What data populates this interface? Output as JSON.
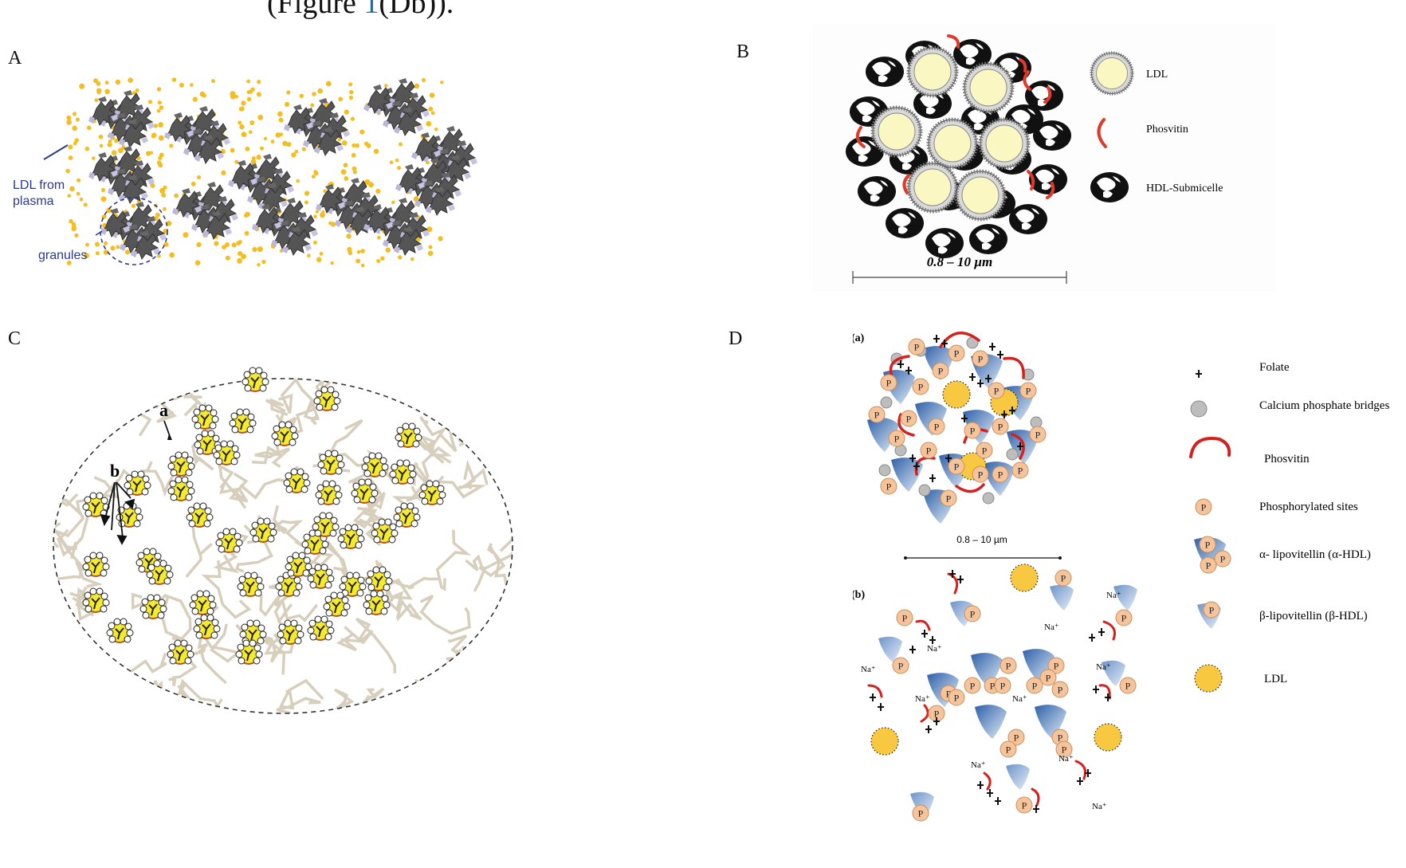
{
  "caption": {
    "prefix": "(Figure ",
    "link": "1",
    "suffix": "(Db))."
  },
  "panels": {
    "A": {
      "letter": "A",
      "label_ldl_line1": "LDL from",
      "label_ldl_line2": "plasma",
      "label_granules": "granules"
    },
    "B": {
      "letter": "B",
      "scale": "0.8 – 10 µm",
      "legend": [
        {
          "icon": "ldl-icon",
          "label": "LDL"
        },
        {
          "icon": "phosvitin-icon",
          "label": "Phosvitin"
        },
        {
          "icon": "hdl-submicelle-icon",
          "label": "HDL-Submicelle"
        }
      ]
    },
    "C": {
      "letter": "C",
      "label_a": "a",
      "label_b": "b"
    },
    "D": {
      "letter": "D",
      "sub_a": "(a)",
      "sub_b": "(b)",
      "scale": "0.8 – 10 µm",
      "p_letter": "P",
      "ion": "Na⁺",
      "legend": [
        {
          "icon": "folate-icon",
          "label": "Folate"
        },
        {
          "icon": "calcium-phosphate-icon",
          "label": "Calcium phosphate bridges"
        },
        {
          "icon": "phosvitin-icon",
          "label": "Phosvitin"
        },
        {
          "icon": "phosphorylated-site-icon",
          "label": "Phosphorylated sites"
        },
        {
          "icon": "alpha-lipovitellin-icon",
          "label": "α- lipovitellin (α-HDL)"
        },
        {
          "icon": "beta-lipovitellin-icon",
          "label": "β-lipovitellin (β-HDL)"
        },
        {
          "icon": "ldl-icon",
          "label": "LDL"
        }
      ]
    }
  }
}
